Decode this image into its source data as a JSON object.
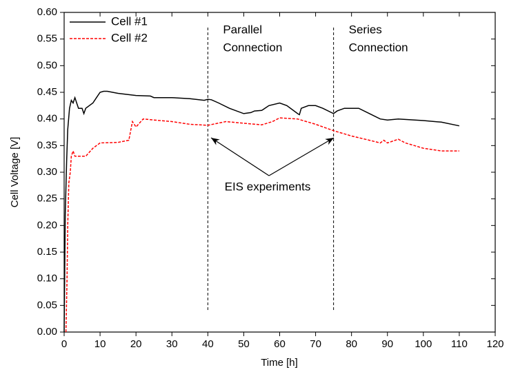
{
  "chart_data": {
    "type": "line",
    "xlabel": "Time [h]",
    "ylabel": "Cell Voltage [V]",
    "xlim": [
      0,
      120
    ],
    "xticks": [
      0,
      10,
      20,
      30,
      40,
      50,
      60,
      70,
      80,
      90,
      100,
      110,
      120
    ],
    "ylim": [
      0,
      0.6
    ],
    "yticks": [
      {
        "value": 0,
        "label": "0.00"
      },
      {
        "value": 0.05,
        "label": "0.05"
      },
      {
        "value": 0.1,
        "label": "0.10"
      },
      {
        "value": 0.15,
        "label": "0.15"
      },
      {
        "value": 0.2,
        "label": "0.20"
      },
      {
        "value": 0.25,
        "label": "0.25"
      },
      {
        "value": 0.3,
        "label": "0.30"
      },
      {
        "value": 0.35,
        "label": "0.35"
      },
      {
        "value": 0.4,
        "label": "0.40"
      },
      {
        "value": 0.45,
        "label": "0.45"
      },
      {
        "value": 0.5,
        "label": "0.50"
      },
      {
        "value": 0.55,
        "label": "0.55"
      },
      {
        "value": 0.6,
        "label": "0.60"
      }
    ],
    "legend": "top-left",
    "series": [
      {
        "name": "Cell #1",
        "color": "#000000",
        "dash": false,
        "x": [
          0,
          0.3,
          0.7,
          1,
          1.5,
          2,
          2.5,
          3,
          3.5,
          4,
          5,
          5.5,
          6,
          7,
          8,
          9,
          10,
          11,
          12,
          15,
          20,
          24,
          25,
          30,
          35,
          39,
          40,
          41,
          43,
          46,
          50,
          52,
          53,
          55,
          57,
          60,
          62,
          65,
          65.5,
          66,
          68,
          70,
          72,
          75,
          76,
          78,
          80,
          82,
          85,
          88,
          90,
          93,
          100,
          105,
          110
        ],
        "values": [
          0,
          0.22,
          0.32,
          0.38,
          0.42,
          0.435,
          0.43,
          0.44,
          0.43,
          0.42,
          0.42,
          0.41,
          0.42,
          0.425,
          0.43,
          0.44,
          0.45,
          0.452,
          0.452,
          0.448,
          0.444,
          0.443,
          0.44,
          0.44,
          0.438,
          0.435,
          0.437,
          0.436,
          0.43,
          0.42,
          0.41,
          0.412,
          0.415,
          0.416,
          0.425,
          0.43,
          0.425,
          0.41,
          0.408,
          0.42,
          0.425,
          0.425,
          0.42,
          0.41,
          0.415,
          0.42,
          0.42,
          0.42,
          0.41,
          0.4,
          0.398,
          0.4,
          0.397,
          0.394,
          0.387
        ]
      },
      {
        "name": "Cell #2",
        "color": "#ff0000",
        "dash": true,
        "x": [
          0.5,
          0.8,
          1,
          1.3,
          1.7,
          2,
          2.5,
          3,
          4,
          6,
          8,
          10,
          15,
          18,
          19,
          20,
          22,
          25,
          30,
          35,
          40,
          45,
          50,
          55,
          58,
          60,
          65,
          70,
          75,
          80,
          85,
          88,
          89,
          90,
          93,
          95,
          100,
          105,
          110
        ],
        "values": [
          0,
          0.1,
          0.2,
          0.28,
          0.3,
          0.33,
          0.34,
          0.33,
          0.33,
          0.33,
          0.345,
          0.355,
          0.356,
          0.36,
          0.395,
          0.385,
          0.4,
          0.398,
          0.395,
          0.39,
          0.388,
          0.395,
          0.392,
          0.389,
          0.395,
          0.402,
          0.4,
          0.39,
          0.378,
          0.368,
          0.36,
          0.355,
          0.36,
          0.355,
          0.362,
          0.355,
          0.345,
          0.34,
          0.34
        ]
      }
    ],
    "vlines": [
      {
        "x": 40,
        "label": [
          "Parallel",
          "Connection"
        ]
      },
      {
        "x": 75,
        "label": [
          "Series",
          "Connection"
        ]
      }
    ],
    "annotation": "EIS experiments"
  }
}
